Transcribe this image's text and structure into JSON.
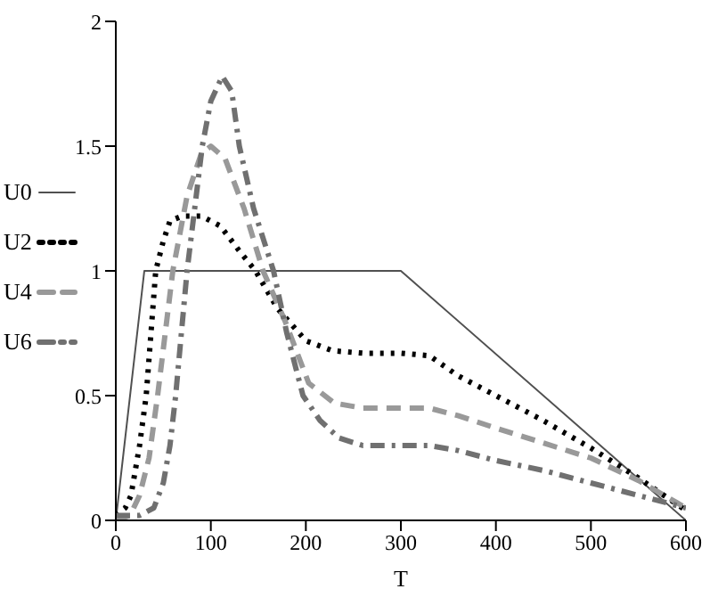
{
  "chart_data": {
    "type": "line",
    "xlabel": "T",
    "xlim": [
      0,
      600
    ],
    "xticks": [
      0,
      100,
      200,
      300,
      400,
      500,
      600
    ],
    "ylim": [
      0,
      2
    ],
    "yticks": [
      0,
      0.5,
      1,
      1.5,
      2
    ],
    "legend": "left",
    "grid": false,
    "marker": "none",
    "series": [
      {
        "name": "U0",
        "color": "#505050",
        "line_style": "solid",
        "x": [
          0,
          30,
          300,
          600
        ],
        "values": [
          0,
          1,
          1,
          0
        ]
      },
      {
        "name": "U2",
        "color": "#000000",
        "line_style": "dotted",
        "x": [
          0,
          10,
          16,
          25,
          32,
          42,
          50,
          57,
          70,
          90,
          110,
          130,
          147,
          170,
          200,
          228,
          260,
          300,
          330,
          360,
          400,
          450,
          500,
          550,
          600
        ],
        "values": [
          0.02,
          0.05,
          0.1,
          0.3,
          0.5,
          1.0,
          1.12,
          1.2,
          1.22,
          1.22,
          1.18,
          1.08,
          1.0,
          0.85,
          0.72,
          0.68,
          0.67,
          0.67,
          0.66,
          0.58,
          0.5,
          0.4,
          0.29,
          0.17,
          0.04
        ]
      },
      {
        "name": "U4",
        "color": "#999999",
        "line_style": "dashed",
        "x": [
          0,
          15,
          25,
          35,
          44,
          52,
          60,
          75,
          90,
          100,
          115,
          135,
          155,
          178,
          203,
          230,
          260,
          300,
          330,
          360,
          400,
          450,
          500,
          550,
          600
        ],
        "values": [
          0,
          0.02,
          0.1,
          0.25,
          0.5,
          0.75,
          1.0,
          1.3,
          1.47,
          1.5,
          1.45,
          1.25,
          1.0,
          0.8,
          0.55,
          0.47,
          0.45,
          0.45,
          0.45,
          0.42,
          0.37,
          0.31,
          0.25,
          0.16,
          0.05
        ]
      },
      {
        "name": "U6",
        "color": "#707070",
        "line_style": "dashdot",
        "x": [
          0,
          25,
          40,
          50,
          57,
          63,
          75,
          91,
          100,
          112,
          122,
          130,
          145,
          166,
          180,
          197,
          215,
          235,
          260,
          300,
          330,
          360,
          400,
          450,
          500,
          550,
          600
        ],
        "values": [
          0.02,
          0.02,
          0.05,
          0.15,
          0.3,
          0.5,
          1.0,
          1.5,
          1.68,
          1.78,
          1.72,
          1.5,
          1.25,
          1.0,
          0.75,
          0.5,
          0.4,
          0.33,
          0.3,
          0.3,
          0.3,
          0.28,
          0.24,
          0.2,
          0.15,
          0.1,
          0.05
        ]
      }
    ]
  }
}
